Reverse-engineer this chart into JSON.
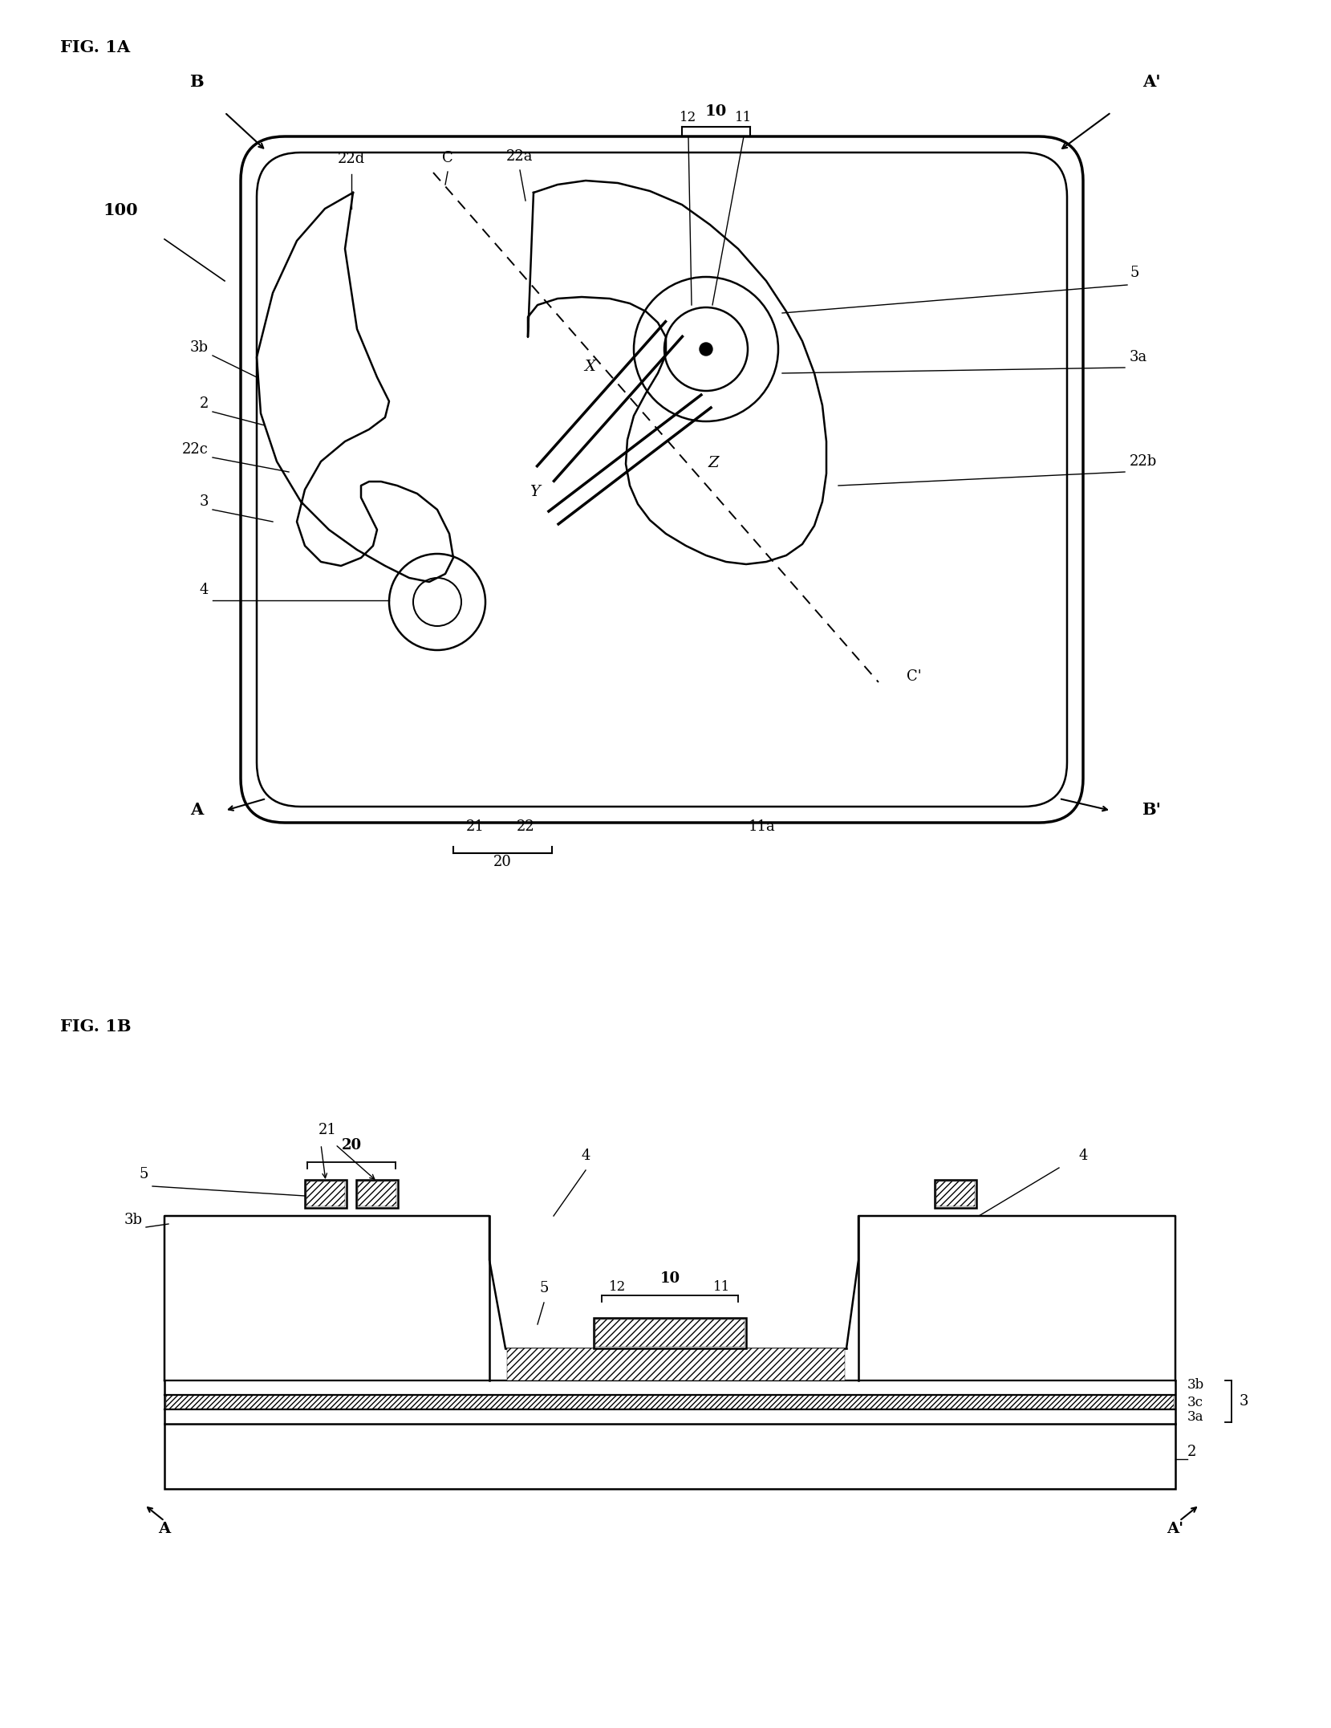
{
  "bg_color": "#ffffff",
  "line_color": "#000000",
  "fig_width": 16.39,
  "fig_height": 21.83,
  "lw": 1.8,
  "lw_thick": 2.5,
  "fs_title": 15,
  "fs_label": 14,
  "fs_ref": 13
}
